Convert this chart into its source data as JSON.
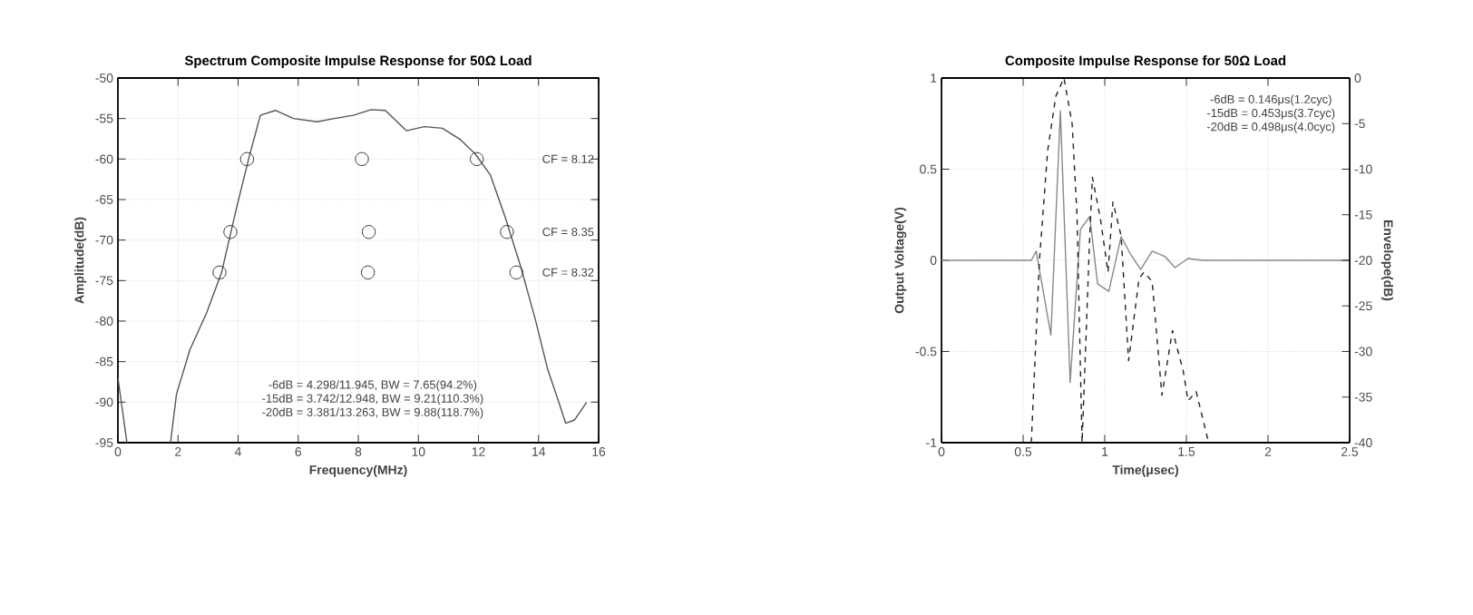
{
  "chart_data": [
    {
      "type": "line",
      "title": "Spectrum Composite Impulse Response for 50Ω Load",
      "xlabel": "Frequency(MHz)",
      "ylabel": "Amplitude(dB)",
      "xlim": [
        0,
        16
      ],
      "xticks": [
        0,
        2,
        4,
        6,
        8,
        10,
        12,
        14,
        16
      ],
      "ylim": [
        -95,
        -50
      ],
      "yticks": [
        -95,
        -90,
        -85,
        -80,
        -75,
        -70,
        -65,
        -60,
        -55,
        -50
      ],
      "grid": true,
      "series": [
        {
          "color": "#555555",
          "x": [
            0,
            0.3,
            1.0,
            1.75,
            1.95,
            2.4,
            2.95,
            3.45,
            3.95,
            4.35,
            4.74,
            5.24,
            5.84,
            6.63,
            7.2,
            7.83,
            8.43,
            8.9,
            9.6,
            10.2,
            10.8,
            11.4,
            11.9,
            12.4,
            12.9,
            13.4,
            13.9,
            14.3,
            14.7,
            14.9,
            15.2,
            15.6
          ],
          "values": [
            -87,
            -95,
            null,
            -95,
            -89,
            -83.5,
            -79,
            -74,
            -66,
            -60,
            -54.6,
            -54,
            -55,
            -55.4,
            -55,
            -54.6,
            -53.9,
            -54,
            -56.5,
            -56,
            -56.2,
            -57.6,
            -59.4,
            -62,
            -67.3,
            -73.2,
            -79.9,
            -85.9,
            -90.3,
            -92.6,
            -92.2,
            -90
          ]
        },
        {
          "type": "scatter",
          "color": "#333333",
          "marker": "circle",
          "x": [
            4.298,
            8.12,
            11.945,
            3.742,
            8.35,
            12.948,
            3.381,
            8.32,
            13.263
          ],
          "values": [
            -60,
            -60,
            -60,
            -69,
            -69,
            -69,
            -74,
            -74,
            -74
          ]
        }
      ],
      "annotations": [
        "CF = 8.12",
        "CF = 8.35",
        "CF = 8.32",
        "-6dB = 4.298/11.945, BW = 7.65(94.2%)",
        "-15dB = 3.742/12.948, BW = 9.21(110.3%)",
        "-20dB = 3.381/13.263, BW = 9.88(118.7%)"
      ]
    },
    {
      "type": "line",
      "title": "Composite Impulse Response for 50Ω Load",
      "xlabel": "Time(μsec)",
      "ylabel": "Output Voltage(V)",
      "y2label": "Envelope(dB)",
      "xlim": [
        0,
        2.5
      ],
      "xticks": [
        0,
        0.5,
        1,
        1.5,
        2,
        2.5
      ],
      "ylim": [
        -1,
        1
      ],
      "yticks": [
        -1,
        -0.5,
        0,
        0.5,
        1
      ],
      "y2lim": [
        -40,
        0
      ],
      "y2ticks": [
        -40,
        -35,
        -30,
        -25,
        -20,
        -15,
        -10,
        -5,
        0
      ],
      "grid": true,
      "series": [
        {
          "color": "#888888",
          "x": [
            0,
            0.55,
            0.58,
            0.67,
            0.728,
            0.788,
            0.851,
            0.908,
            0.956,
            1.025,
            1.1,
            1.16,
            1.22,
            1.29,
            1.37,
            1.43,
            1.51,
            1.6,
            2.5
          ],
          "values": [
            0,
            0,
            0.05,
            -0.41,
            0.82,
            -0.67,
            0.17,
            0.24,
            -0.13,
            -0.17,
            0.13,
            0.03,
            -0.05,
            0.05,
            0.02,
            -0.04,
            0.01,
            0,
            0
          ]
        },
        {
          "axis": "y2",
          "line_style": "dashed",
          "color": "#222222",
          "x": [
            0.55,
            0.6,
            0.65,
            0.7,
            0.75,
            0.8,
            0.83,
            0.861,
            0.908,
            0.924,
            0.972,
            1.02,
            1.05,
            1.1,
            1.146,
            1.21,
            1.24,
            1.29,
            1.35,
            1.415,
            1.48,
            1.51,
            1.56,
            1.636
          ],
          "values": [
            -40,
            -20,
            -8,
            -2,
            0,
            -5,
            -15,
            -40,
            -17.3,
            -10.9,
            -15.3,
            -21.3,
            -13.6,
            -17.3,
            -31,
            -22,
            -21.3,
            -22.3,
            -34.8,
            -27.7,
            -32.1,
            -35.4,
            -34.4,
            -40
          ]
        }
      ],
      "annotations": [
        "-6dB = 0.146μs(1.2cyc)",
        "-15dB = 0.453μs(3.7cyc)",
        "-20dB = 0.498μs(4.0cyc)"
      ]
    }
  ]
}
